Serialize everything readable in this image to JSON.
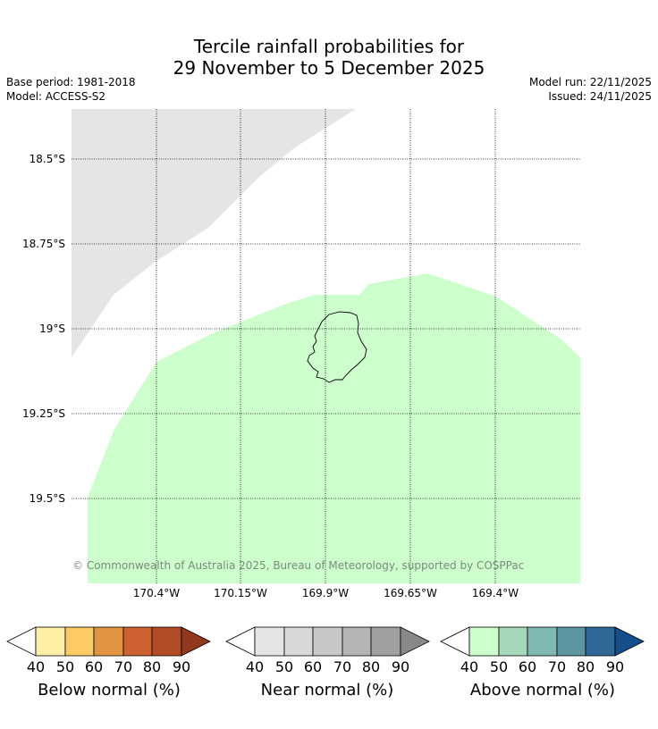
{
  "title_line1": "Tercile rainfall probabilities for",
  "title_line2": "29 November to 5 December 2025",
  "base_period": "Base period: 1981-2018",
  "model": "Model: ACCESS-S2",
  "model_run": "Model run: 22/11/2025",
  "issued": "Issued: 24/11/2025",
  "lat_labels": [
    "18.5°S",
    "18.75°S",
    "19°S",
    "19.25°S",
    "19.5°S"
  ],
  "lon_labels": [
    "170.4°W",
    "170.15°W",
    "169.9°W",
    "169.65°W",
    "169.4°W"
  ],
  "copyright": "© Commonwealth of Australia 2025, Bureau of Meteorology, supported by COSPPac",
  "colors": {
    "near_normal_area": "#e5e5e5",
    "above_normal_area": "#ccffcc"
  },
  "colorbars": [
    {
      "label": "Below normal (%)",
      "ticks": [
        "40",
        "50",
        "60",
        "70",
        "80",
        "90"
      ],
      "colors": [
        "#ffeea6",
        "#fdcb66",
        "#e09444",
        "#cc6132",
        "#b14b27",
        "#91391c"
      ]
    },
    {
      "label": "Near normal (%)",
      "ticks": [
        "40",
        "50",
        "60",
        "70",
        "80",
        "90"
      ],
      "colors": [
        "#e5e5e5",
        "#d9d9d9",
        "#c8c8c8",
        "#b5b5b5",
        "#a0a0a0",
        "#888888"
      ]
    },
    {
      "label": "Above normal (%)",
      "ticks": [
        "40",
        "50",
        "60",
        "70",
        "80",
        "90"
      ],
      "colors": [
        "#ccffcc",
        "#a8d8bc",
        "#80b8b2",
        "#5c95a0",
        "#306898",
        "#154e88"
      ]
    }
  ]
}
